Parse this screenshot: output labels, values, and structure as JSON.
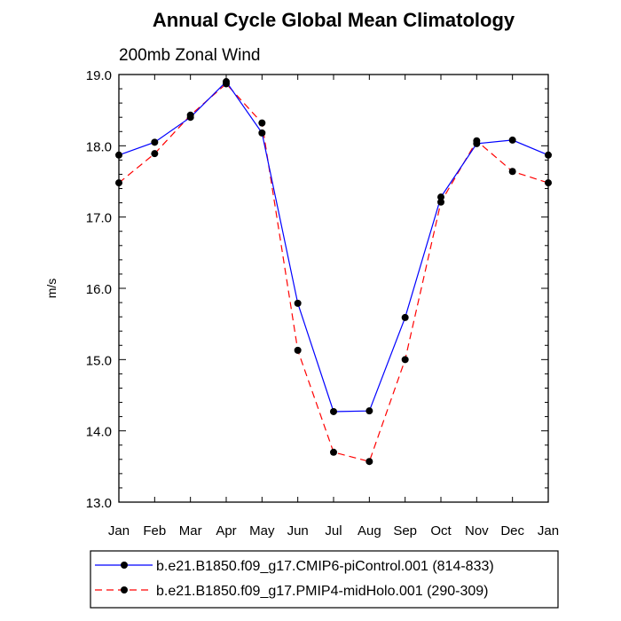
{
  "chart_data": {
    "type": "line",
    "title": "Annual Cycle Global Mean Climatology",
    "subtitle": "200mb Zonal Wind",
    "xlabel": "",
    "ylabel": "m/s",
    "categories": [
      "Jan",
      "Feb",
      "Mar",
      "Apr",
      "May",
      "Jun",
      "Jul",
      "Aug",
      "Sep",
      "Oct",
      "Nov",
      "Dec",
      "Jan"
    ],
    "ylim": [
      13.0,
      19.0
    ],
    "yticks": [
      "13.0",
      "14.0",
      "15.0",
      "16.0",
      "17.0",
      "18.0",
      "19.0"
    ],
    "ytick_values": [
      13.0,
      14.0,
      15.0,
      16.0,
      17.0,
      18.0,
      19.0
    ],
    "grid": false,
    "legend_position": "bottom",
    "series": [
      {
        "name": "b.e21.B1850.f09_g17.CMIP6-piControl.001 (814-833)",
        "color": "#0000ff",
        "style": "solid",
        "values": [
          17.87,
          18.05,
          18.4,
          18.9,
          18.18,
          15.79,
          14.27,
          14.28,
          15.59,
          17.28,
          18.03,
          18.08,
          17.87
        ]
      },
      {
        "name": "b.e21.B1850.f09_g17.PMIP4-midHolo.001 (290-309)",
        "color": "#ff0000",
        "style": "dashed",
        "values": [
          17.48,
          17.89,
          18.43,
          18.87,
          18.32,
          15.13,
          13.7,
          13.57,
          15.0,
          17.21,
          18.07,
          17.64,
          17.48
        ]
      }
    ]
  }
}
